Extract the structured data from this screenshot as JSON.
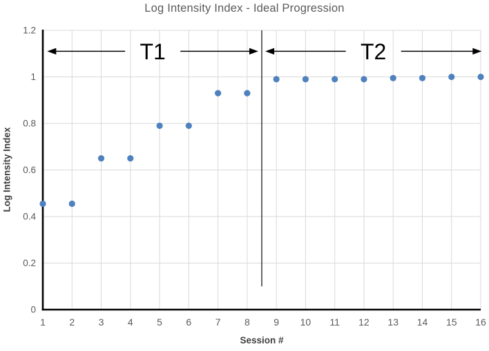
{
  "chart_data": {
    "type": "scatter",
    "title": "Log Intensity Index - Ideal Progression",
    "xlabel": "Session #",
    "ylabel": "Log Intensity Index",
    "x": [
      1,
      2,
      3,
      4,
      5,
      6,
      7,
      8,
      9,
      10,
      11,
      12,
      13,
      14,
      15,
      16
    ],
    "y": [
      0.455,
      0.455,
      0.65,
      0.65,
      0.79,
      0.79,
      0.93,
      0.93,
      0.99,
      0.99,
      0.99,
      0.99,
      0.995,
      0.995,
      1.0,
      1.0
    ],
    "xlim": [
      1,
      16
    ],
    "ylim": [
      0,
      1.2
    ],
    "xticks": [
      1,
      2,
      3,
      4,
      5,
      6,
      7,
      8,
      9,
      10,
      11,
      12,
      13,
      14,
      15,
      16
    ],
    "xtick_labels": [
      "1",
      "2",
      "3",
      "4",
      "5",
      "6",
      "7",
      "8",
      "9",
      "10",
      "11",
      "12",
      "13",
      "14",
      "15",
      "16"
    ],
    "yticks": [
      0,
      0.2,
      0.4,
      0.6,
      0.8,
      1,
      1.2
    ],
    "ytick_labels": [
      "0",
      "0.2",
      "0.4",
      "0.6",
      "0.8",
      "1",
      "1.2"
    ],
    "grid": true,
    "legend": "none",
    "marker_color": "#4E81BD",
    "gridline_color": "#D9D9D9",
    "axis_color": "#000000",
    "annotation_color": "#000000",
    "tick_label_color": "#595959",
    "title_color": "#595959",
    "divider": {
      "x": 8.5,
      "y_start": 0.1,
      "y_end": 1.2
    },
    "annotations": [
      {
        "label": "T1",
        "x_start": 1.15,
        "x_end": 8.38,
        "y": 1.11
      },
      {
        "label": "T2",
        "x_start": 8.62,
        "x_end": 16.03,
        "y": 1.11
      }
    ]
  }
}
